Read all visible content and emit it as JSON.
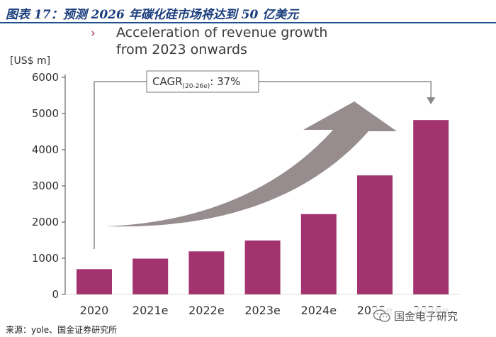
{
  "header": {
    "title": "图表 17：预测 2026 年碳化硅市场将达到 50 亿美元"
  },
  "footer": {
    "source": "来源：yole、国金证券研究所"
  },
  "watermark": {
    "text": "国金电子研究",
    "icon": "wechat-icon"
  },
  "colors": {
    "bar": "#a2336f",
    "arrow": "#8f8384",
    "header_rule": "#1f4f8f",
    "title_text": "#1a3d7c"
  },
  "chart_data": {
    "type": "bar",
    "title": "Acceleration of revenue growth\nfrom 2023 onwards",
    "title_marker": "›",
    "ylabel": "[US$ m]",
    "xlabel": "",
    "categories": [
      "2020",
      "2021e",
      "2022e",
      "2023e",
      "2024e",
      "2025e",
      "2026e"
    ],
    "values": [
      700,
      990,
      1190,
      1490,
      2220,
      3290,
      4820
    ],
    "ylim": [
      0,
      6000
    ],
    "yticks": [
      0,
      1000,
      2000,
      3000,
      4000,
      5000,
      6000
    ],
    "grid": false,
    "annotation": {
      "label": "CAGR",
      "subscript": "(20-26e)",
      "suffix": ": 37%",
      "from": "2020",
      "to": "2026e"
    },
    "growth_arrow": true
  }
}
